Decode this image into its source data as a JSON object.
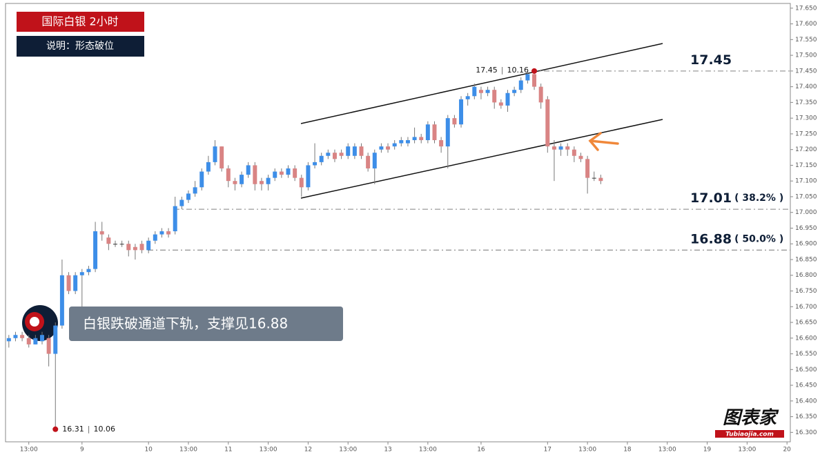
{
  "chart_data": {
    "type": "candlestick",
    "title": "国际白银  2小时",
    "subtitle": "说明：形态破位",
    "callout": "白银跌破通道下轨，支撑见16.88",
    "logo": {
      "name": "图表家",
      "site": "Tubiaojia.com"
    },
    "colors": {
      "up": "#3d8ee8",
      "down": "#d98484"
    },
    "x": [
      0,
      1,
      2,
      3,
      4,
      5,
      6,
      7,
      8,
      9,
      10,
      11,
      12,
      13,
      14,
      15,
      16,
      17,
      18,
      19,
      20,
      21,
      22,
      23,
      24,
      25,
      26,
      27,
      28,
      29,
      30,
      31,
      32,
      33,
      34,
      35,
      36,
      37,
      38,
      39,
      40,
      41,
      42,
      43,
      44,
      45,
      46,
      47,
      48,
      49,
      50,
      51,
      52,
      53,
      54,
      55,
      56,
      57,
      58,
      59,
      60,
      61,
      62,
      63,
      64,
      65,
      66,
      67,
      68,
      69,
      70,
      71,
      72,
      73,
      74,
      75,
      76,
      77,
      78,
      79,
      80,
      81,
      82,
      83,
      84,
      85,
      86,
      87,
      88,
      89
    ],
    "open": [
      16.59,
      16.6,
      16.61,
      16.6,
      16.58,
      16.59,
      16.6,
      16.55,
      16.64,
      16.8,
      16.75,
      16.8,
      16.81,
      16.82,
      16.94,
      16.92,
      16.9,
      16.9,
      16.9,
      16.89,
      16.9,
      16.88,
      16.91,
      16.93,
      16.94,
      16.94,
      17.02,
      17.04,
      17.06,
      17.08,
      17.13,
      17.16,
      17.21,
      17.14,
      17.1,
      17.09,
      17.12,
      17.15,
      17.1,
      17.09,
      17.11,
      17.13,
      17.12,
      17.14,
      17.11,
      17.08,
      17.15,
      17.16,
      17.18,
      17.19,
      17.19,
      17.18,
      17.18,
      17.21,
      17.18,
      17.14,
      17.2,
      17.21,
      17.21,
      17.22,
      17.22,
      17.23,
      17.24,
      17.23,
      17.28,
      17.23,
      17.21,
      17.3,
      17.28,
      17.36,
      17.37,
      17.39,
      17.38,
      17.39,
      17.35,
      17.34,
      17.38,
      17.39,
      17.42,
      17.44,
      17.4,
      17.36,
      17.21,
      17.2,
      17.21,
      17.2,
      17.18,
      17.17,
      17.11,
      17.11
    ],
    "high": [
      16.61,
      16.62,
      16.62,
      16.61,
      16.61,
      16.62,
      16.61,
      16.65,
      16.85,
      16.81,
      16.81,
      16.82,
      16.83,
      16.97,
      16.97,
      16.93,
      16.91,
      16.91,
      16.91,
      16.9,
      16.91,
      16.92,
      16.94,
      16.95,
      16.95,
      17.05,
      17.05,
      17.07,
      17.1,
      17.14,
      17.18,
      17.23,
      17.21,
      17.15,
      17.11,
      17.13,
      17.16,
      17.16,
      17.11,
      17.12,
      17.14,
      17.14,
      17.15,
      17.15,
      17.12,
      17.16,
      17.22,
      17.19,
      17.2,
      17.2,
      17.2,
      17.22,
      17.22,
      17.22,
      17.19,
      17.2,
      17.22,
      17.22,
      17.23,
      17.24,
      17.24,
      17.27,
      17.25,
      17.29,
      17.29,
      17.24,
      17.31,
      17.31,
      17.37,
      17.38,
      17.41,
      17.4,
      17.4,
      17.4,
      17.36,
      17.39,
      17.4,
      17.43,
      17.45,
      17.45,
      17.41,
      17.37,
      17.23,
      17.22,
      17.22,
      17.21,
      17.19,
      17.18,
      17.13,
      17.12
    ],
    "low": [
      16.57,
      16.59,
      16.59,
      16.57,
      16.58,
      16.58,
      16.51,
      16.31,
      16.63,
      16.74,
      16.74,
      16.7,
      16.8,
      16.81,
      16.91,
      16.88,
      16.89,
      16.89,
      16.86,
      16.85,
      16.87,
      16.87,
      16.9,
      16.92,
      16.92,
      16.93,
      17.01,
      17.03,
      17.05,
      17.07,
      17.12,
      17.15,
      17.13,
      17.08,
      17.07,
      17.08,
      17.11,
      17.07,
      17.07,
      17.07,
      17.1,
      17.11,
      17.11,
      17.1,
      17.05,
      17.07,
      17.14,
      17.15,
      17.17,
      17.16,
      17.17,
      17.17,
      17.17,
      17.17,
      17.13,
      17.09,
      17.19,
      17.19,
      17.2,
      17.21,
      17.21,
      17.22,
      17.22,
      17.22,
      17.22,
      17.19,
      17.14,
      17.27,
      17.27,
      17.34,
      17.36,
      17.36,
      17.37,
      17.33,
      17.33,
      17.32,
      17.37,
      17.38,
      17.41,
      17.39,
      17.33,
      17.19,
      17.1,
      17.18,
      17.18,
      17.16,
      17.16,
      17.06,
      17.1,
      17.09
    ],
    "close": [
      16.6,
      16.61,
      16.6,
      16.58,
      16.6,
      16.61,
      16.55,
      16.64,
      16.8,
      16.75,
      16.8,
      16.81,
      16.82,
      16.94,
      16.93,
      16.9,
      16.9,
      16.9,
      16.88,
      16.88,
      16.88,
      16.91,
      16.93,
      16.94,
      16.93,
      17.02,
      17.04,
      17.06,
      17.08,
      17.13,
      17.16,
      17.21,
      17.14,
      17.1,
      17.09,
      17.12,
      17.15,
      17.09,
      17.09,
      17.11,
      17.13,
      17.12,
      17.14,
      17.11,
      17.08,
      17.15,
      17.16,
      17.18,
      17.19,
      17.17,
      17.18,
      17.21,
      17.21,
      17.18,
      17.14,
      17.19,
      17.21,
      17.2,
      17.22,
      17.23,
      17.23,
      17.24,
      17.23,
      17.28,
      17.23,
      17.21,
      17.3,
      17.28,
      17.36,
      17.37,
      17.4,
      17.38,
      17.39,
      17.35,
      17.34,
      17.38,
      17.39,
      17.42,
      17.44,
      17.4,
      17.35,
      17.21,
      17.2,
      17.21,
      17.2,
      17.18,
      17.17,
      17.11,
      17.11,
      17.1
    ],
    "markers": [
      {
        "x": 79,
        "price": 17.45,
        "time": "10.16"
      },
      {
        "x": 7,
        "price": 16.31,
        "time": "10.06"
      }
    ],
    "levels": [
      {
        "value": 17.45,
        "label": "17.45"
      },
      {
        "value": 17.01,
        "label": "17.01",
        "ratio": "( 38.2% )"
      },
      {
        "value": 16.88,
        "label": "16.88",
        "ratio": "( 50.0% )"
      }
    ],
    "xlim": [
      -0.5,
      117.5
    ],
    "xticks": [
      {
        "value": 3,
        "label": "13:00"
      },
      {
        "value": 11,
        "label": "9"
      },
      {
        "value": 21,
        "label": "10"
      },
      {
        "value": 27,
        "label": "13:00"
      },
      {
        "value": 33,
        "label": "11"
      },
      {
        "value": 39,
        "label": "13:00"
      },
      {
        "value": 45,
        "label": "12"
      },
      {
        "value": 51,
        "label": "13:00"
      },
      {
        "value": 57,
        "label": "13"
      },
      {
        "value": 63,
        "label": "13:00"
      },
      {
        "value": 71,
        "label": "16"
      },
      {
        "value": 81,
        "label": "17"
      },
      {
        "value": 87,
        "label": "13:00"
      },
      {
        "value": 93,
        "label": "18"
      },
      {
        "value": 99,
        "label": "13:00"
      },
      {
        "value": 105,
        "label": "19"
      },
      {
        "value": 111,
        "label": "13:00"
      },
      {
        "value": 117,
        "label": "20"
      }
    ],
    "ylim": [
      16.27,
      17.665
    ],
    "yticks": [
      {
        "value": 16.3,
        "label": "16.300"
      },
      {
        "value": 16.35,
        "label": "16.350"
      },
      {
        "value": 16.4,
        "label": "16.400"
      },
      {
        "value": 16.45,
        "label": "16.450"
      },
      {
        "value": 16.5,
        "label": "16.500"
      },
      {
        "value": 16.55,
        "label": "16.550"
      },
      {
        "value": 16.6,
        "label": "16.600"
      },
      {
        "value": 16.65,
        "label": "16.650"
      },
      {
        "value": 16.7,
        "label": "16.700"
      },
      {
        "value": 16.75,
        "label": "16.750"
      },
      {
        "value": 16.8,
        "label": "16.800"
      },
      {
        "value": 16.85,
        "label": "16.850"
      },
      {
        "value": 16.9,
        "label": "16.900"
      },
      {
        "value": 16.95,
        "label": "16.950"
      },
      {
        "value": 17.0,
        "label": "17.000"
      },
      {
        "value": 17.05,
        "label": "17.050"
      },
      {
        "value": 17.1,
        "label": "17.100"
      },
      {
        "value": 17.15,
        "label": "17.150"
      },
      {
        "value": 17.2,
        "label": "17.200"
      },
      {
        "value": 17.25,
        "label": "17.250"
      },
      {
        "value": 17.3,
        "label": "17.300"
      },
      {
        "value": 17.35,
        "label": "17.350"
      },
      {
        "value": 17.4,
        "label": "17.400"
      },
      {
        "value": 17.45,
        "label": "17.450"
      },
      {
        "value": 17.5,
        "label": "17.500"
      },
      {
        "value": 17.55,
        "label": "17.550"
      },
      {
        "value": 17.6,
        "label": "17.600"
      },
      {
        "value": 17.65,
        "label": "17.650"
      }
    ]
  }
}
